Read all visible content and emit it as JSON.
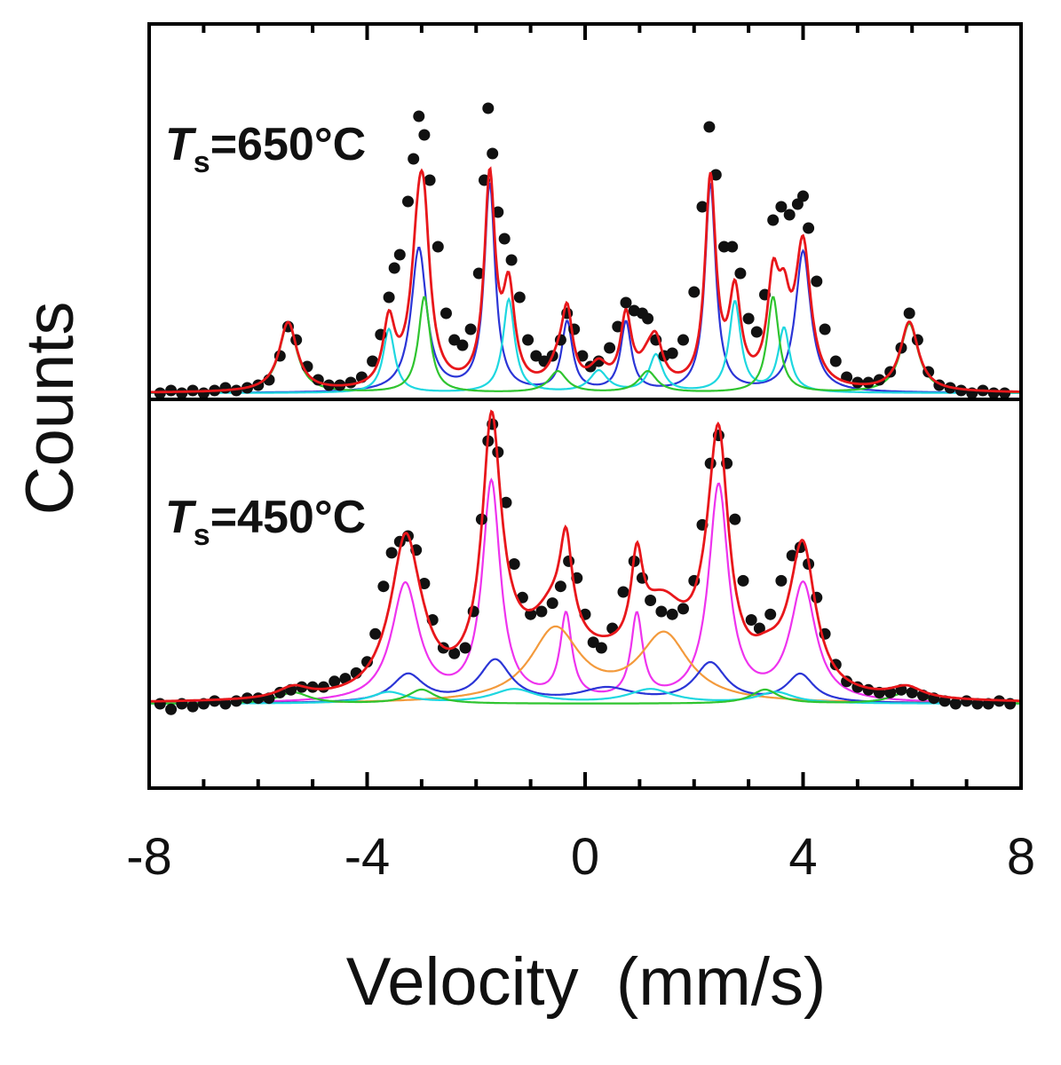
{
  "chart_data": {
    "type": "line",
    "xlabel": "Velocity  (mm/s)",
    "ylabel": "Counts",
    "xlim": [
      -8,
      8
    ],
    "xticks": [
      "-8",
      "-4",
      "0",
      "4",
      "8"
    ],
    "grid": false,
    "legend": "none",
    "panels": [
      {
        "label_symbol": "T",
        "label_sub": "s",
        "label_rest": "=650°C",
        "baseline": 0,
        "total_color": "#e8171b",
        "components": [
          {
            "color": "#2b35d6",
            "peaks": [
              [
                -3.05,
                0.54,
                0.17
              ],
              [
                -1.75,
                0.78,
                0.12
              ],
              [
                -0.33,
                0.26,
                0.12
              ],
              [
                0.75,
                0.26,
                0.12
              ],
              [
                2.3,
                0.78,
                0.12
              ],
              [
                4.0,
                0.53,
                0.17
              ]
            ]
          },
          {
            "color": "#1ed7e0",
            "peaks": [
              [
                -3.6,
                0.24,
                0.13
              ],
              [
                -1.4,
                0.35,
                0.13
              ],
              [
                0.25,
                0.08,
                0.2
              ],
              [
                1.3,
                0.14,
                0.15
              ],
              [
                2.75,
                0.34,
                0.13
              ],
              [
                3.65,
                0.24,
                0.13
              ]
            ]
          },
          {
            "color": "#2fc42f",
            "peaks": [
              [
                -5.45,
                0.26,
                0.2
              ],
              [
                -2.95,
                0.36,
                0.13
              ],
              [
                -0.5,
                0.08,
                0.2
              ],
              [
                1.15,
                0.08,
                0.2
              ],
              [
                3.45,
                0.36,
                0.13
              ],
              [
                5.95,
                0.26,
                0.2
              ]
            ]
          }
        ],
        "points": [
          [
            -7.8,
            0.0
          ],
          [
            -7.6,
            0.01
          ],
          [
            -7.4,
            0.0
          ],
          [
            -7.2,
            0.01
          ],
          [
            -7.0,
            0.0
          ],
          [
            -6.8,
            0.01
          ],
          [
            -6.6,
            0.02
          ],
          [
            -6.4,
            0.01
          ],
          [
            -6.2,
            0.02
          ],
          [
            -6.0,
            0.03
          ],
          [
            -5.8,
            0.05
          ],
          [
            -5.6,
            0.14
          ],
          [
            -5.45,
            0.25
          ],
          [
            -5.3,
            0.2
          ],
          [
            -5.1,
            0.1
          ],
          [
            -4.9,
            0.05
          ],
          [
            -4.7,
            0.03
          ],
          [
            -4.5,
            0.03
          ],
          [
            -4.3,
            0.04
          ],
          [
            -4.1,
            0.06
          ],
          [
            -3.9,
            0.12
          ],
          [
            -3.75,
            0.22
          ],
          [
            -3.6,
            0.36
          ],
          [
            -3.5,
            0.47
          ],
          [
            -3.4,
            0.52
          ],
          [
            -3.25,
            0.72
          ],
          [
            -3.15,
            0.88
          ],
          [
            -3.05,
            1.04
          ],
          [
            -2.95,
            0.97
          ],
          [
            -2.85,
            0.8
          ],
          [
            -2.7,
            0.55
          ],
          [
            -2.55,
            0.3
          ],
          [
            -2.4,
            0.2
          ],
          [
            -2.25,
            0.18
          ],
          [
            -2.1,
            0.24
          ],
          [
            -1.95,
            0.45
          ],
          [
            -1.85,
            0.8
          ],
          [
            -1.78,
            1.07
          ],
          [
            -1.7,
            0.9
          ],
          [
            -1.6,
            0.68
          ],
          [
            -1.48,
            0.58
          ],
          [
            -1.35,
            0.5
          ],
          [
            -1.2,
            0.36
          ],
          [
            -1.05,
            0.2
          ],
          [
            -0.9,
            0.14
          ],
          [
            -0.75,
            0.12
          ],
          [
            -0.6,
            0.14
          ],
          [
            -0.45,
            0.2
          ],
          [
            -0.33,
            0.3
          ],
          [
            -0.2,
            0.24
          ],
          [
            -0.05,
            0.14
          ],
          [
            0.1,
            0.1
          ],
          [
            0.25,
            0.12
          ],
          [
            0.45,
            0.17
          ],
          [
            0.6,
            0.25
          ],
          [
            0.75,
            0.34
          ],
          [
            0.9,
            0.31
          ],
          [
            1.05,
            0.3
          ],
          [
            1.15,
            0.28
          ],
          [
            1.3,
            0.2
          ],
          [
            1.45,
            0.14
          ],
          [
            1.6,
            0.15
          ],
          [
            1.8,
            0.2
          ],
          [
            2.0,
            0.38
          ],
          [
            2.15,
            0.7
          ],
          [
            2.28,
            1.0
          ],
          [
            2.4,
            0.82
          ],
          [
            2.55,
            0.55
          ],
          [
            2.7,
            0.55
          ],
          [
            2.85,
            0.45
          ],
          [
            3.0,
            0.28
          ],
          [
            3.15,
            0.23
          ],
          [
            3.3,
            0.37
          ],
          [
            3.45,
            0.65
          ],
          [
            3.6,
            0.7
          ],
          [
            3.75,
            0.67
          ],
          [
            3.9,
            0.71
          ],
          [
            4.0,
            0.74
          ],
          [
            4.1,
            0.62
          ],
          [
            4.25,
            0.42
          ],
          [
            4.4,
            0.24
          ],
          [
            4.6,
            0.12
          ],
          [
            4.8,
            0.06
          ],
          [
            5.0,
            0.04
          ],
          [
            5.2,
            0.04
          ],
          [
            5.4,
            0.05
          ],
          [
            5.6,
            0.08
          ],
          [
            5.8,
            0.17
          ],
          [
            5.95,
            0.3
          ],
          [
            6.1,
            0.2
          ],
          [
            6.3,
            0.08
          ],
          [
            6.5,
            0.03
          ],
          [
            6.7,
            0.02
          ],
          [
            6.9,
            0.01
          ],
          [
            7.1,
            0.0
          ],
          [
            7.3,
            0.01
          ],
          [
            7.5,
            0.0
          ],
          [
            7.7,
            0.0
          ]
        ]
      },
      {
        "label_symbol": "T",
        "label_sub": "s",
        "label_rest": "=450°C",
        "baseline": 0,
        "total_color": "#e8171b",
        "components": [
          {
            "color": "#ee33ee",
            "peaks": [
              [
                -3.3,
                0.42,
                0.3
              ],
              [
                -1.72,
                0.78,
                0.2
              ],
              [
                -0.35,
                0.3,
                0.13
              ],
              [
                0.95,
                0.3,
                0.13
              ],
              [
                2.45,
                0.77,
                0.22
              ],
              [
                4.0,
                0.42,
                0.28
              ]
            ]
          },
          {
            "color": "#f39a3c",
            "peaks": [
              [
                -0.55,
                0.26,
                0.55
              ],
              [
                1.45,
                0.24,
                0.55
              ]
            ]
          },
          {
            "color": "#2b35d6",
            "peaks": [
              [
                -3.25,
                0.1,
                0.35
              ],
              [
                -1.65,
                0.15,
                0.35
              ],
              [
                0.4,
                0.05,
                0.6
              ],
              [
                2.3,
                0.14,
                0.35
              ],
              [
                3.95,
                0.1,
                0.3
              ]
            ]
          },
          {
            "color": "#1ed7e0",
            "peaks": [
              [
                -3.6,
                0.04,
                0.4
              ],
              [
                -1.3,
                0.05,
                0.5
              ],
              [
                1.2,
                0.05,
                0.5
              ],
              [
                3.5,
                0.04,
                0.4
              ]
            ]
          },
          {
            "color": "#2fc42f",
            "peaks": [
              [
                -5.35,
                0.04,
                0.35
              ],
              [
                -3.0,
                0.05,
                0.3
              ],
              [
                3.3,
                0.05,
                0.3
              ],
              [
                5.9,
                0.04,
                0.35
              ]
            ]
          }
        ],
        "points": [
          [
            -7.8,
            0.0
          ],
          [
            -7.6,
            -0.02
          ],
          [
            -7.4,
            0.0
          ],
          [
            -7.2,
            -0.01
          ],
          [
            -7.0,
            0.0
          ],
          [
            -6.8,
            0.01
          ],
          [
            -6.6,
            0.0
          ],
          [
            -6.4,
            0.01
          ],
          [
            -6.2,
            0.02
          ],
          [
            -6.0,
            0.02
          ],
          [
            -5.8,
            0.02
          ],
          [
            -5.6,
            0.04
          ],
          [
            -5.4,
            0.05
          ],
          [
            -5.2,
            0.06
          ],
          [
            -5.0,
            0.06
          ],
          [
            -4.8,
            0.06
          ],
          [
            -4.6,
            0.08
          ],
          [
            -4.4,
            0.09
          ],
          [
            -4.2,
            0.11
          ],
          [
            -4.0,
            0.15
          ],
          [
            -3.85,
            0.25
          ],
          [
            -3.7,
            0.42
          ],
          [
            -3.55,
            0.54
          ],
          [
            -3.4,
            0.58
          ],
          [
            -3.25,
            0.6
          ],
          [
            -3.1,
            0.55
          ],
          [
            -2.95,
            0.43
          ],
          [
            -2.8,
            0.3
          ],
          [
            -2.6,
            0.2
          ],
          [
            -2.4,
            0.18
          ],
          [
            -2.2,
            0.2
          ],
          [
            -2.05,
            0.33
          ],
          [
            -1.9,
            0.66
          ],
          [
            -1.78,
            0.94
          ],
          [
            -1.7,
            1.0
          ],
          [
            -1.6,
            0.9
          ],
          [
            -1.45,
            0.72
          ],
          [
            -1.3,
            0.5
          ],
          [
            -1.15,
            0.38
          ],
          [
            -1.0,
            0.32
          ],
          [
            -0.8,
            0.33
          ],
          [
            -0.6,
            0.36
          ],
          [
            -0.45,
            0.42
          ],
          [
            -0.3,
            0.51
          ],
          [
            -0.15,
            0.45
          ],
          [
            0.0,
            0.32
          ],
          [
            0.15,
            0.22
          ],
          [
            0.3,
            0.2
          ],
          [
            0.5,
            0.27
          ],
          [
            0.7,
            0.4
          ],
          [
            0.9,
            0.51
          ],
          [
            1.05,
            0.45
          ],
          [
            1.2,
            0.37
          ],
          [
            1.4,
            0.33
          ],
          [
            1.6,
            0.32
          ],
          [
            1.8,
            0.34
          ],
          [
            2.0,
            0.44
          ],
          [
            2.15,
            0.64
          ],
          [
            2.3,
            0.86
          ],
          [
            2.45,
            0.96
          ],
          [
            2.6,
            0.86
          ],
          [
            2.75,
            0.66
          ],
          [
            2.9,
            0.44
          ],
          [
            3.05,
            0.3
          ],
          [
            3.2,
            0.27
          ],
          [
            3.4,
            0.32
          ],
          [
            3.6,
            0.44
          ],
          [
            3.8,
            0.53
          ],
          [
            3.95,
            0.56
          ],
          [
            4.1,
            0.5
          ],
          [
            4.25,
            0.38
          ],
          [
            4.4,
            0.25
          ],
          [
            4.6,
            0.14
          ],
          [
            4.8,
            0.08
          ],
          [
            5.0,
            0.06
          ],
          [
            5.2,
            0.05
          ],
          [
            5.4,
            0.04
          ],
          [
            5.6,
            0.04
          ],
          [
            5.8,
            0.05
          ],
          [
            6.0,
            0.04
          ],
          [
            6.2,
            0.03
          ],
          [
            6.4,
            0.02
          ],
          [
            6.6,
            0.01
          ],
          [
            6.8,
            0.0
          ],
          [
            7.0,
            0.01
          ],
          [
            7.2,
            0.0
          ],
          [
            7.4,
            0.0
          ],
          [
            7.6,
            0.01
          ],
          [
            7.8,
            0.0
          ]
        ]
      }
    ]
  }
}
